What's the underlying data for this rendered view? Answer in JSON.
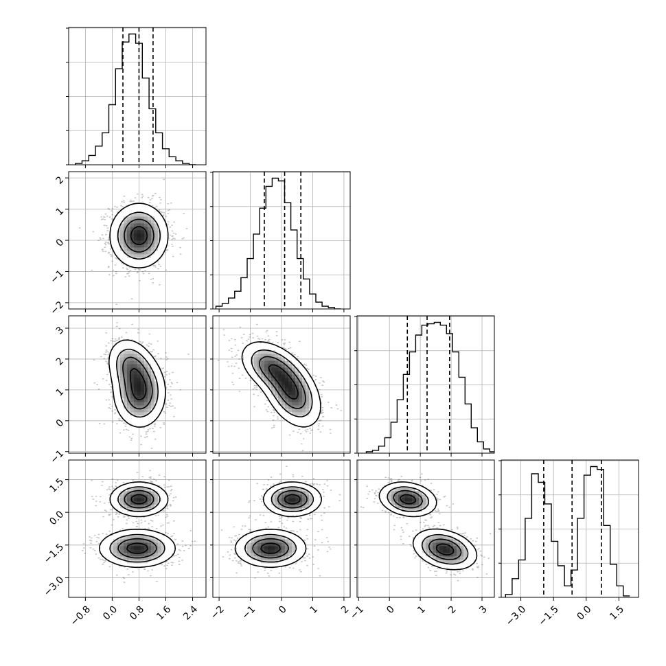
{
  "chart_data": {
    "type": "corner",
    "parameters": [
      {
        "range": [
          -1.3,
          2.8
        ],
        "ticks": [
          -0.8,
          0.0,
          0.8,
          1.6,
          2.4
        ],
        "tick_labels": [
          "−0.8",
          "0.0",
          "0.8",
          "1.6",
          "2.4"
        ],
        "quantiles": [
          0.32,
          0.8,
          1.22
        ]
      },
      {
        "range": [
          -2.2,
          2.2
        ],
        "ticks": [
          -2,
          -1,
          0,
          1,
          2
        ],
        "tick_labels": [
          "−2",
          "−1",
          "0",
          "1",
          "2"
        ],
        "quantiles": [
          -0.55,
          0.1,
          0.62
        ]
      },
      {
        "range": [
          -1.05,
          3.4
        ],
        "ticks": [
          -1,
          0,
          1,
          2,
          3
        ],
        "tick_labels": [
          "−1",
          "0",
          "1",
          "2",
          "3"
        ],
        "quantiles": [
          0.58,
          1.22,
          1.95
        ]
      },
      {
        "range": [
          -3.9,
          2.4
        ],
        "ticks": [
          -3.0,
          -1.5,
          0.0,
          1.5
        ],
        "tick_labels": [
          "−3.0",
          "−1.5",
          "0.0",
          "1.5"
        ],
        "quantiles": [
          -1.95,
          -0.65,
          0.7
        ]
      }
    ],
    "histograms": [
      {
        "param": 0,
        "bins_start": -1.1,
        "bin_width": 0.2,
        "counts": [
          1,
          3,
          7,
          14,
          24,
          45,
          72,
          92,
          98,
          91,
          65,
          42,
          24,
          12,
          6,
          3,
          1,
          0
        ]
      },
      {
        "param": 1,
        "bins_start": -2.1,
        "bin_width": 0.2,
        "counts": [
          2,
          4,
          8,
          13,
          23,
          37,
          55,
          74,
          90,
          96,
          94,
          78,
          58,
          37,
          22,
          11,
          5,
          2,
          1,
          0
        ]
      },
      {
        "param": 2,
        "bins_start": -0.75,
        "bin_width": 0.2,
        "counts": [
          1,
          2,
          5,
          11,
          22,
          38,
          56,
          72,
          84,
          91,
          92,
          93,
          91,
          85,
          72,
          54,
          35,
          18,
          8,
          3,
          1
        ]
      },
      {
        "param": 3,
        "bins_start": -3.7,
        "bin_width": 0.3,
        "counts": [
          2,
          13,
          26,
          55,
          86,
          80,
          65,
          39,
          22,
          8,
          19,
          55,
          85,
          91,
          89,
          50,
          23,
          8,
          1
        ]
      }
    ],
    "joint": [
      {
        "x": 0,
        "y": 1,
        "components": [
          {
            "mx": 0.8,
            "my": 0.15,
            "sx": 0.42,
            "sy": 0.5,
            "rho": 0.0,
            "w": 1.0
          }
        ]
      },
      {
        "x": 0,
        "y": 2,
        "components": [
          {
            "mx": 0.55,
            "my": 1.8,
            "sx": 0.35,
            "sy": 0.45,
            "rho": -0.2,
            "w": 0.4
          },
          {
            "mx": 0.82,
            "my": 0.9,
            "sx": 0.38,
            "sy": 0.55,
            "rho": 0.0,
            "w": 0.6
          }
        ]
      },
      {
        "x": 1,
        "y": 2,
        "components": [
          {
            "mx": -0.35,
            "my": 1.75,
            "sx": 0.48,
            "sy": 0.42,
            "rho": -0.4,
            "w": 0.45
          },
          {
            "mx": 0.35,
            "my": 0.9,
            "sx": 0.45,
            "sy": 0.55,
            "rho": -0.4,
            "w": 0.55
          }
        ]
      },
      {
        "x": 0,
        "y": 3,
        "components": [
          {
            "mx": 0.8,
            "my": 0.6,
            "sx": 0.42,
            "sy": 0.38,
            "rho": 0.0,
            "w": 0.5
          },
          {
            "mx": 0.75,
            "my": -1.65,
            "sx": 0.55,
            "sy": 0.42,
            "rho": 0.0,
            "w": 0.5
          }
        ]
      },
      {
        "x": 1,
        "y": 3,
        "components": [
          {
            "mx": 0.35,
            "my": 0.6,
            "sx": 0.45,
            "sy": 0.38,
            "rho": 0.0,
            "w": 0.5
          },
          {
            "mx": -0.35,
            "my": -1.65,
            "sx": 0.55,
            "sy": 0.42,
            "rho": 0.0,
            "w": 0.5
          }
        ]
      },
      {
        "x": 2,
        "y": 3,
        "components": [
          {
            "mx": 0.6,
            "my": 0.6,
            "sx": 0.45,
            "sy": 0.38,
            "rho": -0.2,
            "w": 0.5
          },
          {
            "mx": 1.8,
            "my": -1.7,
            "sx": 0.5,
            "sy": 0.45,
            "rho": -0.3,
            "w": 0.5
          }
        ]
      }
    ],
    "contour_levels": [
      0.12,
      0.33,
      0.58,
      0.85
    ],
    "grid": true,
    "colors": {
      "hist": "#000000",
      "contour": "#000000",
      "points": "#555555"
    }
  }
}
